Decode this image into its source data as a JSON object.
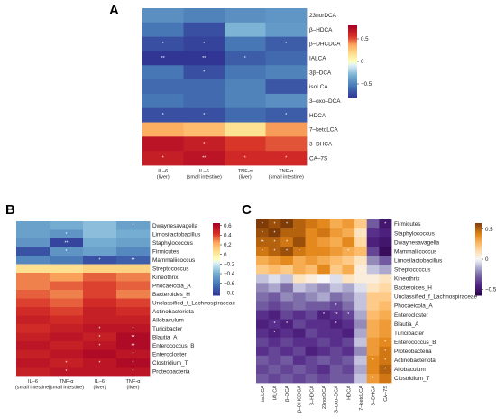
{
  "panel_letters": {
    "a": "A",
    "b": "B",
    "c": "C"
  },
  "chart_data": [
    {
      "id": "A",
      "type": "heatmap",
      "rows": [
        "23norDCA",
        "β–HDCA",
        "β–DHCDCA",
        "IALCA",
        "3β–DCA",
        "isoLCA",
        "3–oxo–DCA",
        "HDCA",
        "7–ketoLCA",
        "3–DHCA",
        "CA–7S"
      ],
      "columns": [
        [
          "IL–6",
          "(liver)"
        ],
        [
          "IL–6",
          "(small intestine)"
        ],
        [
          "TNF-α",
          "(liver)"
        ],
        [
          "TNF-α",
          "(small intestine)"
        ]
      ],
      "values": [
        [
          -0.45,
          -0.5,
          -0.45,
          -0.42
        ],
        [
          -0.55,
          -0.7,
          -0.3,
          -0.4
        ],
        [
          -0.7,
          -0.75,
          -0.55,
          -0.65
        ],
        [
          -0.8,
          -0.85,
          -0.65,
          -0.6
        ],
        [
          -0.55,
          -0.7,
          -0.55,
          -0.5
        ],
        [
          -0.6,
          -0.6,
          -0.5,
          -0.68
        ],
        [
          -0.55,
          -0.6,
          -0.5,
          -0.45
        ],
        [
          -0.7,
          -0.7,
          -0.6,
          -0.65
        ],
        [
          0.35,
          0.3,
          0.15,
          0.38
        ],
        [
          0.7,
          0.65,
          0.55,
          0.5
        ],
        [
          0.65,
          0.7,
          0.6,
          0.6
        ]
      ],
      "significance": [
        [
          "",
          "",
          "",
          ""
        ],
        [
          "",
          "",
          "",
          ""
        ],
        [
          "*",
          "*",
          "",
          "*"
        ],
        [
          "**",
          "**",
          "*",
          ""
        ],
        [
          "",
          "*",
          "",
          ""
        ],
        [
          "",
          "",
          "",
          ""
        ],
        [
          "",
          "",
          "",
          ""
        ],
        [
          "*",
          "*",
          "",
          "*"
        ],
        [
          "",
          "",
          "",
          ""
        ],
        [
          "",
          "*",
          "",
          ""
        ],
        [
          "*",
          "**",
          "*",
          "*"
        ]
      ],
      "colorbar_ticks": [
        "0.5",
        "0",
        "−0.5"
      ],
      "colorbar_values": [
        0.5,
        0,
        -0.5
      ],
      "vmin": -0.8,
      "vmax": 0.8,
      "colormap": "rdylbu"
    },
    {
      "id": "B",
      "type": "heatmap",
      "rows": [
        "Dwaynesavagella",
        "Limosilactobacillus",
        "Staphylococcus",
        "Firmicutes",
        "Mammaliicoccus",
        "Streptococcus",
        "Kineothrix",
        "Phocaeicola_A",
        "Bacteroides_H",
        "Unclassified_f_Lachnospiraceae",
        "Actinobacteriota",
        "Allobaculum",
        "Turicibacter",
        "Blautia_A",
        "Enterococcus_B",
        "Enterocloster",
        "Clostridium_T",
        "Proteobacteria"
      ],
      "columns": [
        [
          "IL–6",
          "(small intestine)"
        ],
        [
          "TNF-α",
          "(small intestine)"
        ],
        [
          "IL–6",
          "(liver)"
        ],
        [
          "TNF-α",
          "(liver)"
        ]
      ],
      "values": [
        [
          -0.45,
          -0.4,
          -0.35,
          -0.45
        ],
        [
          -0.45,
          -0.5,
          -0.35,
          -0.4
        ],
        [
          -0.5,
          -0.8,
          -0.4,
          -0.45
        ],
        [
          -0.75,
          -0.5,
          -0.45,
          -0.55
        ],
        [
          -0.55,
          -0.6,
          -0.75,
          -0.7
        ],
        [
          0.05,
          0.05,
          0.1,
          0.1
        ],
        [
          0.3,
          0.25,
          0.35,
          0.3
        ],
        [
          0.3,
          0.35,
          0.4,
          0.35
        ],
        [
          0.35,
          0.3,
          0.4,
          0.3
        ],
        [
          0.4,
          0.35,
          0.45,
          0.4
        ],
        [
          0.45,
          0.4,
          0.5,
          0.45
        ],
        [
          0.5,
          0.45,
          0.5,
          0.5
        ],
        [
          0.45,
          0.5,
          0.55,
          0.55
        ],
        [
          0.5,
          0.55,
          0.5,
          0.6
        ],
        [
          0.55,
          0.5,
          0.55,
          0.6
        ],
        [
          0.5,
          0.55,
          0.6,
          0.55
        ],
        [
          0.55,
          0.5,
          0.55,
          0.6
        ],
        [
          0.5,
          0.55,
          0.55,
          0.55
        ]
      ],
      "significance": [
        [
          "",
          "",
          "",
          "*"
        ],
        [
          "",
          "*",
          "",
          ""
        ],
        [
          "",
          "**",
          "",
          ""
        ],
        [
          "",
          "*",
          "",
          ""
        ],
        [
          "",
          "",
          "*",
          "**"
        ],
        [
          "",
          "",
          "",
          ""
        ],
        [
          "",
          "",
          "",
          ""
        ],
        [
          "",
          "",
          "",
          ""
        ],
        [
          "",
          "",
          "",
          ""
        ],
        [
          "",
          "",
          "",
          ""
        ],
        [
          "",
          "",
          "",
          ""
        ],
        [
          "",
          "",
          "",
          ""
        ],
        [
          "",
          "",
          "*",
          "*"
        ],
        [
          "",
          "",
          "*",
          "**"
        ],
        [
          "",
          "",
          "*",
          "**"
        ],
        [
          "",
          "",
          "",
          "*"
        ],
        [
          "",
          "*",
          "*",
          "*"
        ],
        [
          "",
          "*",
          "",
          "*"
        ]
      ],
      "colorbar_ticks": [
        "0.6",
        "0.4",
        "0.2",
        "0",
        "−0.2",
        "−0.4",
        "−0.6",
        "−0.8"
      ],
      "colorbar_values": [
        0.6,
        0.4,
        0.2,
        0,
        -0.2,
        -0.4,
        -0.6,
        -0.8
      ],
      "vmin": -0.85,
      "vmax": 0.65,
      "colormap": "rdylbu"
    },
    {
      "id": "C",
      "type": "heatmap",
      "rows": [
        "Firmicutes",
        "Staphylococcus",
        "Dwaynesavagella",
        "Mammaliicoccus",
        "Limosilactobacillus",
        "Streptococcus",
        "Kineothrix",
        "Bacteroides_H",
        "Unclassified_f_Lachnospiraceae",
        "Phocaeicola_A",
        "Enterocloster",
        "Blautia_A",
        "Turicibacter",
        "Enterococcus_B",
        "Proteobacteria",
        "Actinobacteriota",
        "Allobaculum",
        "Clostridium_T"
      ],
      "columns": [
        "isoLCA",
        "IALCA",
        "β–DCA",
        "β–DHCDCA",
        "β–HDCA",
        "23norDCA",
        "3–oxo–DCA",
        "HDCA",
        "7–ketoLCA",
        "3–DHCA",
        "CA–7S"
      ],
      "values": [
        [
          0.6,
          0.55,
          0.6,
          0.5,
          0.45,
          0.4,
          0.3,
          0.35,
          0.2,
          -0.3,
          -0.5
        ],
        [
          0.55,
          0.6,
          0.5,
          0.5,
          0.4,
          0.45,
          0.35,
          0.3,
          0.1,
          -0.4,
          -0.45
        ],
        [
          0.5,
          0.5,
          0.45,
          0.55,
          0.4,
          0.35,
          0.3,
          0.4,
          0.15,
          -0.45,
          -0.5
        ],
        [
          0.45,
          0.5,
          0.55,
          0.45,
          0.4,
          0.4,
          0.35,
          0.3,
          0.25,
          -0.35,
          -0.55
        ],
        [
          0.3,
          0.35,
          0.4,
          0.3,
          0.35,
          0.3,
          0.25,
          0.2,
          0.1,
          -0.2,
          -0.3
        ],
        [
          0.2,
          0.25,
          0.2,
          0.3,
          0.25,
          0.4,
          0.2,
          0.3,
          0.05,
          -0.1,
          -0.15
        ],
        [
          -0.1,
          -0.05,
          -0.1,
          0.1,
          0.05,
          0.0,
          -0.05,
          0.1,
          0.05,
          0.05,
          0.1
        ],
        [
          -0.2,
          -0.15,
          -0.25,
          -0.1,
          -0.15,
          -0.2,
          -0.1,
          -0.15,
          -0.05,
          0.1,
          0.15
        ],
        [
          -0.25,
          -0.3,
          -0.2,
          -0.25,
          -0.2,
          -0.15,
          -0.25,
          -0.2,
          -0.1,
          0.2,
          0.2
        ],
        [
          -0.3,
          -0.35,
          -0.3,
          -0.25,
          -0.3,
          -0.3,
          -0.35,
          -0.25,
          -0.1,
          0.2,
          0.25
        ],
        [
          -0.4,
          -0.45,
          -0.35,
          -0.4,
          -0.35,
          -0.45,
          -0.4,
          -0.35,
          -0.15,
          0.25,
          0.3
        ],
        [
          -0.45,
          -0.4,
          -0.45,
          -0.35,
          -0.4,
          -0.4,
          -0.45,
          -0.4,
          -0.2,
          0.3,
          0.35
        ],
        [
          -0.4,
          -0.45,
          -0.4,
          -0.45,
          -0.35,
          -0.4,
          -0.4,
          -0.45,
          -0.15,
          0.3,
          0.35
        ],
        [
          -0.35,
          -0.4,
          -0.35,
          -0.4,
          -0.4,
          -0.35,
          -0.4,
          -0.35,
          -0.1,
          0.35,
          0.4
        ],
        [
          -0.4,
          -0.35,
          -0.4,
          -0.35,
          -0.45,
          -0.4,
          -0.35,
          -0.4,
          -0.2,
          0.35,
          0.45
        ],
        [
          -0.3,
          -0.35,
          -0.3,
          -0.4,
          -0.35,
          -0.3,
          -0.35,
          -0.3,
          -0.1,
          0.4,
          0.45
        ],
        [
          -0.35,
          -0.3,
          -0.35,
          -0.3,
          -0.35,
          -0.4,
          -0.3,
          -0.35,
          -0.15,
          0.4,
          0.5
        ],
        [
          -0.3,
          -0.35,
          -0.3,
          -0.35,
          -0.3,
          -0.35,
          -0.3,
          -0.3,
          -0.1,
          0.35,
          0.45
        ]
      ],
      "significance": [
        [
          "*",
          "*",
          "*",
          "",
          "",
          "",
          "",
          "",
          "",
          "",
          "*"
        ],
        [
          "*",
          "*",
          "",
          "",
          "",
          "",
          "",
          "",
          "",
          "",
          ""
        ],
        [
          "**",
          "*",
          "*",
          "",
          "",
          "",
          "",
          "",
          "",
          "",
          ""
        ],
        [
          "*",
          "*",
          "*",
          "*",
          "",
          "",
          "",
          "*",
          "",
          "",
          ""
        ],
        [
          "",
          "",
          "",
          "",
          "",
          "",
          "",
          "",
          "",
          "",
          ""
        ],
        [
          "",
          "",
          "",
          "",
          "",
          "",
          "",
          "",
          "",
          "",
          ""
        ],
        [
          "",
          "",
          "",
          "",
          "",
          "",
          "",
          "",
          "",
          "",
          ""
        ],
        [
          "",
          "",
          "",
          "",
          "",
          "",
          "",
          "",
          "",
          "",
          ""
        ],
        [
          "",
          "",
          "",
          "",
          "",
          "",
          "",
          "",
          "",
          "",
          ""
        ],
        [
          "",
          "",
          "",
          "",
          "",
          "",
          "*",
          "",
          "",
          "",
          ""
        ],
        [
          "",
          "",
          "",
          "",
          "",
          "*",
          "**",
          "*",
          "",
          "",
          ""
        ],
        [
          "",
          "*",
          "*",
          "",
          "",
          "",
          "*",
          "",
          "",
          "",
          ""
        ],
        [
          "",
          "*",
          "",
          "",
          "",
          "",
          "",
          "",
          "",
          "",
          ""
        ],
        [
          "",
          "",
          "",
          "",
          "",
          "",
          "",
          "",
          "",
          "",
          "*"
        ],
        [
          "",
          "",
          "",
          "",
          "",
          "",
          "",
          "",
          "",
          "",
          "*"
        ],
        [
          "",
          "",
          "",
          "",
          "",
          "",
          "",
          "",
          "",
          "*",
          "*"
        ],
        [
          "",
          "",
          "",
          "",
          "",
          "",
          "",
          "",
          "",
          "",
          "*"
        ],
        [
          "",
          "",
          "",
          "",
          "",
          "",
          "",
          "",
          "",
          "*",
          ""
        ]
      ],
      "colorbar_ticks": [
        "0.5",
        "0",
        "−0.5"
      ],
      "colorbar_values": [
        0.5,
        0,
        -0.5
      ],
      "vmin": -0.6,
      "vmax": 0.6,
      "colormap": "puor"
    }
  ]
}
